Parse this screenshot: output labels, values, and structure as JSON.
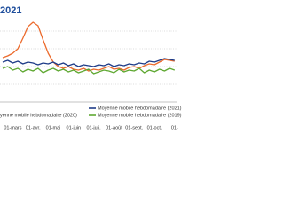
{
  "chart_data": {
    "type": "line",
    "title": "2021",
    "categories": [
      null,
      null,
      "01-mars",
      null,
      null,
      null,
      "01-avr.",
      null,
      null,
      null,
      "01-mai",
      null,
      null,
      null,
      "01-juin",
      null,
      null,
      null,
      "01-juil.",
      null,
      null,
      null,
      "01-août",
      null,
      null,
      null,
      "01-sept.",
      null,
      null,
      null,
      "01-oct.",
      null,
      null,
      null,
      "01-"
    ],
    "ylim": [
      0,
      100
    ],
    "series": [
      {
        "name": "yenne mobile hebdomadaire (2020)",
        "color": "#ec6b2d",
        "values": [
          50,
          52,
          55,
          60,
          72,
          85,
          90,
          86,
          70,
          55,
          45,
          40,
          38,
          40,
          37,
          36,
          38,
          35,
          37,
          36,
          38,
          40,
          37,
          38,
          36,
          39,
          40,
          38,
          41,
          43,
          42,
          45,
          48,
          47,
          46
        ]
      },
      {
        "name": "Moyenne mobile hebdomadaire (2019)",
        "color": "#5fa832",
        "values": [
          38,
          40,
          36,
          38,
          34,
          37,
          35,
          38,
          33,
          36,
          38,
          35,
          37,
          34,
          36,
          33,
          35,
          37,
          32,
          34,
          36,
          35,
          33,
          37,
          34,
          36,
          35,
          38,
          33,
          36,
          34,
          37,
          35,
          38,
          36
        ]
      },
      {
        "name": "Moyenne mobile hebdomadaire (2021)",
        "color": "#1f3c88",
        "values": [
          45,
          47,
          44,
          46,
          43,
          45,
          44,
          42,
          44,
          43,
          45,
          42,
          44,
          41,
          43,
          40,
          42,
          41,
          40,
          42,
          41,
          43,
          40,
          42,
          41,
          43,
          42,
          44,
          43,
          46,
          45,
          47,
          49,
          48,
          47
        ]
      }
    ]
  }
}
